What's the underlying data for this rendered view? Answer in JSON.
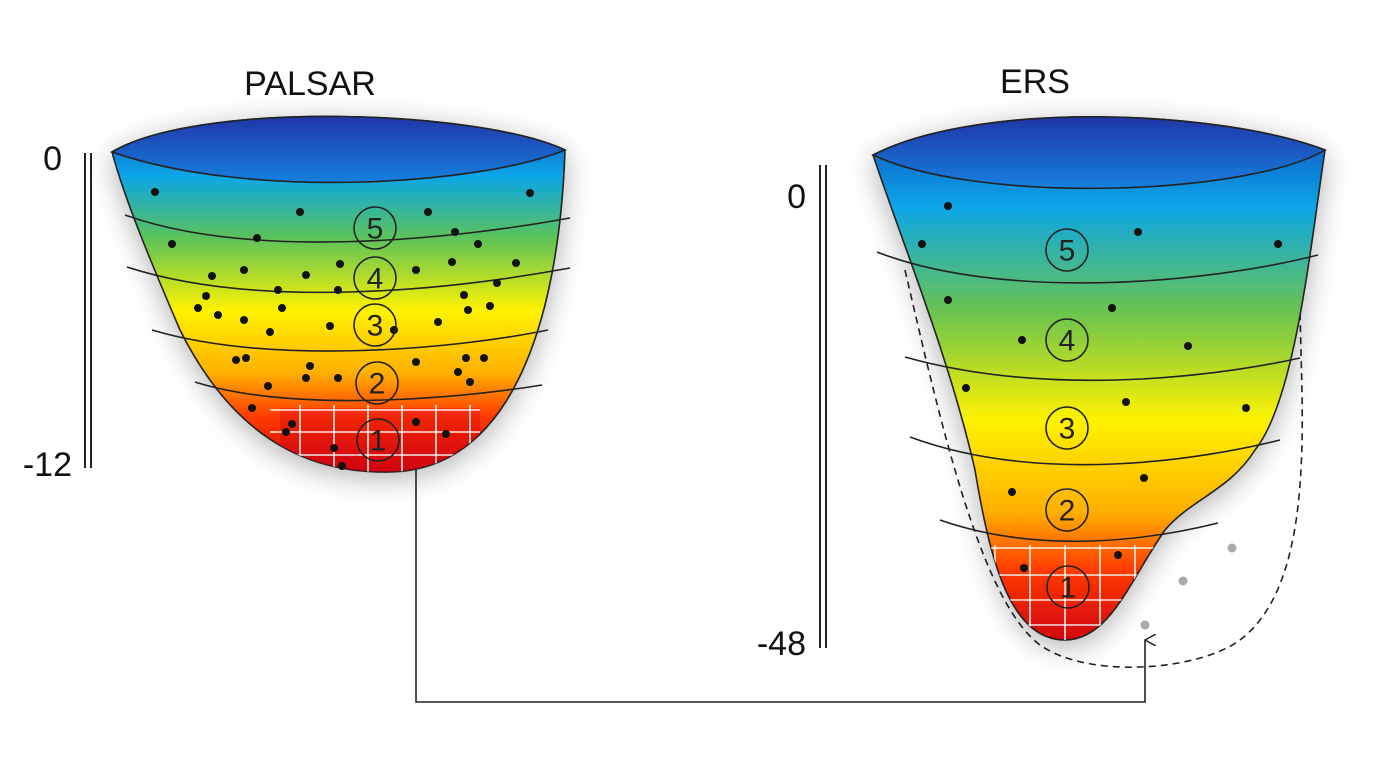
{
  "panels": [
    {
      "title": "PALSAR",
      "scale_top": "0",
      "scale_bottom": "-12",
      "layers": [
        "5",
        "4",
        "3",
        "2",
        "1"
      ]
    },
    {
      "title": "ERS",
      "scale_top": "0",
      "scale_bottom": "-48",
      "layers": [
        "5",
        "4",
        "3",
        "2",
        "1"
      ]
    }
  ]
}
